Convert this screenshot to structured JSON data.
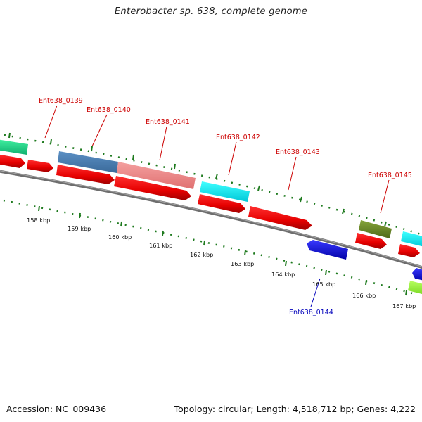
{
  "title": "Enterobacter sp. 638, complete genome",
  "footer": {
    "accession": "Accession: NC_009436",
    "summary": "Topology: circular; Length: 4,518,712 bp; Genes: 4,222"
  },
  "colors": {
    "backbone": "#7a7a7a",
    "tick": "#1e7a1e",
    "label_red": "#cc0000",
    "label_blue": "#0000bb",
    "cds_red": "#ee0000",
    "blue_gene": "#0a0aee"
  },
  "gene_labels": [
    {
      "text": "Ent638_0139",
      "color": "#cc0000"
    },
    {
      "text": "Ent638_0140",
      "color": "#cc0000"
    },
    {
      "text": "Ent638_0141",
      "color": "#cc0000"
    },
    {
      "text": "Ent638_0142",
      "color": "#cc0000"
    },
    {
      "text": "Ent638_0143",
      "color": "#cc0000"
    },
    {
      "text": "Ent638_0145",
      "color": "#cc0000"
    },
    {
      "text": "Ent638_0144",
      "color": "#0000bb"
    }
  ],
  "kbp_labels": [
    "158 kbp",
    "159 kbp",
    "160 kbp",
    "161 kbp",
    "162 kbp",
    "163 kbp",
    "164 kbp",
    "165 kbp",
    "166 kbp",
    "167 kbp"
  ]
}
